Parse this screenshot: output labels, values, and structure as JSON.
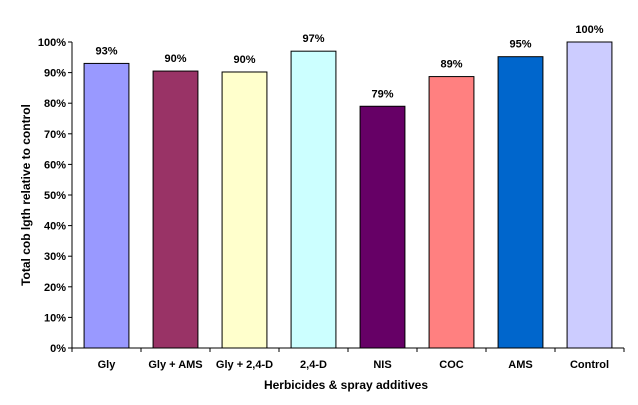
{
  "chart_data": {
    "type": "bar",
    "title": "",
    "xlabel": "Herbicides & spray additives",
    "ylabel": "Total cob lgth relative to control",
    "categories": [
      "Gly",
      "Gly + AMS",
      "Gly + 2,4-D",
      "2,4-D",
      "NIS",
      "COC",
      "AMS",
      "Control"
    ],
    "values": [
      93,
      90.5,
      90.2,
      97,
      79,
      88.7,
      95.2,
      100
    ],
    "value_labels": [
      "93%",
      "90%",
      "90%",
      "97%",
      "79%",
      "89%",
      "95%",
      "100%"
    ],
    "bar_colors": [
      "#9999FF",
      "#993366",
      "#FFFFCC",
      "#CCFFFF",
      "#660066",
      "#FF8080",
      "#0066CC",
      "#CCCCFF"
    ],
    "ylim": [
      0,
      100
    ],
    "yticks": [
      0,
      10,
      20,
      30,
      40,
      50,
      60,
      70,
      80,
      90,
      100
    ],
    "ytick_labels": [
      "0%",
      "10%",
      "20%",
      "30%",
      "40%",
      "50%",
      "60%",
      "70%",
      "80%",
      "90%",
      "100%"
    ],
    "grid": false,
    "legend": "none"
  }
}
